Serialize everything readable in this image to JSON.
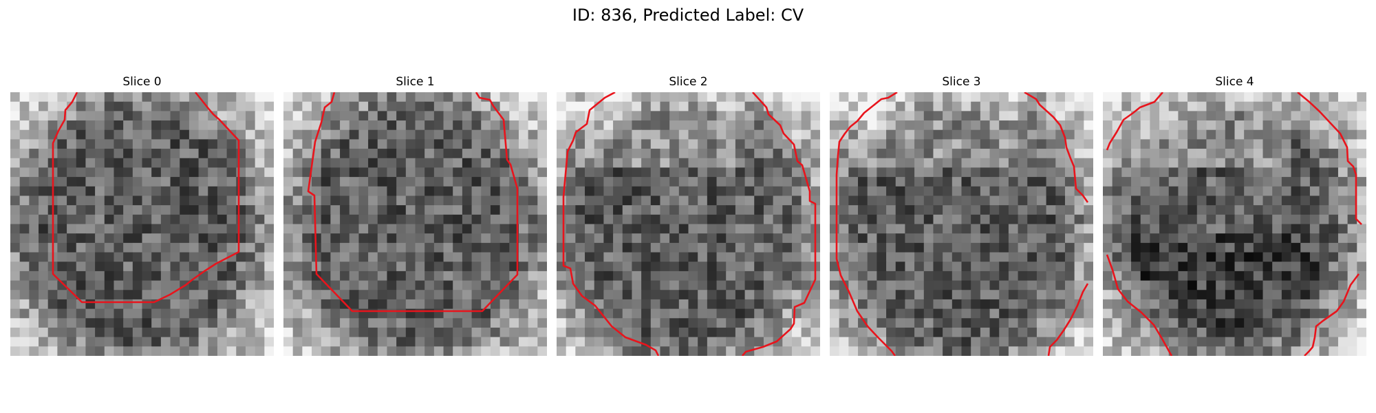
{
  "figure": {
    "title": "ID: 836, Predicted Label: CV"
  },
  "panels": [
    {
      "title": "Slice 0",
      "seed": 11,
      "contour_color": "#e8141c"
    },
    {
      "title": "Slice 1",
      "seed": 23,
      "contour_color": "#e8141c"
    },
    {
      "title": "Slice 2",
      "seed": 37,
      "contour_color": "#e8141c"
    },
    {
      "title": "Slice 3",
      "seed": 51,
      "contour_color": "#e8141c"
    },
    {
      "title": "Slice 4",
      "seed": 67,
      "contour_color": "#e8141c"
    }
  ]
}
